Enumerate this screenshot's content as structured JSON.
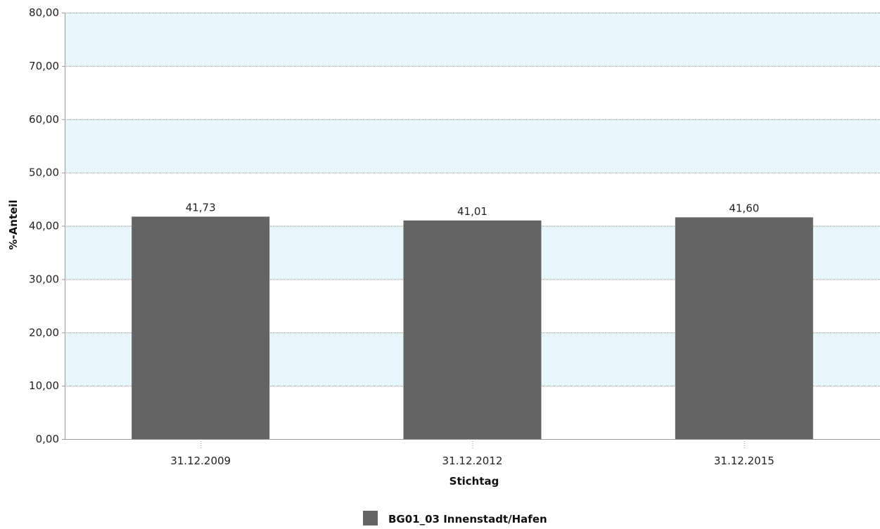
{
  "chart_data": {
    "type": "bar",
    "categories": [
      "31.12.2009",
      "31.12.2012",
      "31.12.2015"
    ],
    "series": [
      {
        "name": "BG01_03 Innenstadt/Hafen",
        "values": [
          41.73,
          41.01,
          41.6
        ],
        "value_labels": [
          "41,73",
          "41,01",
          "41,60"
        ],
        "color": "#646464"
      }
    ],
    "xlabel": "Stichtag",
    "ylabel": "%-Anteil",
    "ylim": [
      0,
      80
    ],
    "yticks": [
      0,
      10,
      20,
      30,
      40,
      50,
      60,
      70,
      80
    ],
    "ytick_labels": [
      "0,00",
      "10,00",
      "20,00",
      "30,00",
      "40,00",
      "50,00",
      "60,00",
      "70,00",
      "80,00"
    ],
    "grid": true,
    "band_color": "#e8f7fb",
    "legend_position": "bottom-center"
  }
}
